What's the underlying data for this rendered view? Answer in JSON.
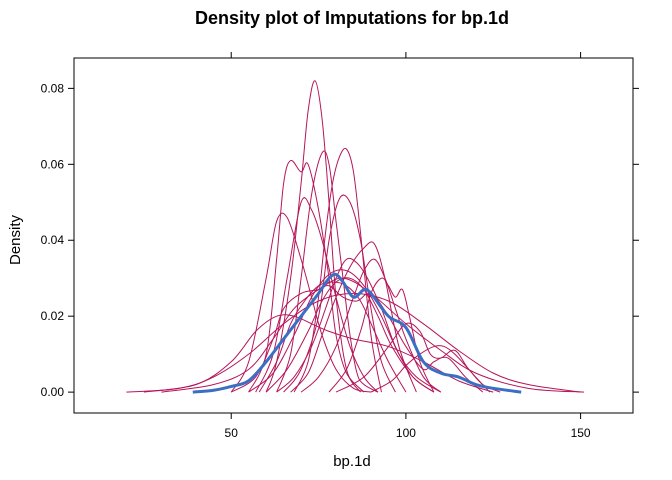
{
  "chart_data": {
    "type": "line",
    "title": "Density plot of Imputations for bp.1d",
    "xlabel": "bp.1d",
    "ylabel": "Density",
    "xlim": [
      5,
      165
    ],
    "ylim": [
      -0.0055,
      0.088
    ],
    "xticks": [
      50,
      100,
      150
    ],
    "yticks": [
      0.0,
      0.02,
      0.04,
      0.06,
      0.08
    ],
    "ytick_labels": [
      "0.00",
      "0.02",
      "0.04",
      "0.06",
      "0.08"
    ],
    "grid": false,
    "legend": "none",
    "colors": {
      "observed": "#3b6fc4",
      "imputed": "#b5165a"
    },
    "observed": {
      "x": [
        39,
        45,
        50,
        55,
        60,
        65,
        70,
        75,
        78,
        80,
        82,
        85,
        88,
        90,
        95,
        100,
        105,
        110,
        115,
        120,
        125,
        133
      ],
      "y": [
        0.0,
        0.0005,
        0.0015,
        0.003,
        0.008,
        0.014,
        0.02,
        0.026,
        0.03,
        0.031,
        0.029,
        0.025,
        0.027,
        0.026,
        0.02,
        0.017,
        0.008,
        0.005,
        0.004,
        0.002,
        0.001,
        0.0
      ]
    },
    "imputations": [
      {
        "x": [
          60,
          63,
          67,
          70,
          72,
          74,
          76,
          78,
          80,
          83,
          87
        ],
        "y": [
          0.0,
          0.008,
          0.03,
          0.055,
          0.074,
          0.082,
          0.072,
          0.05,
          0.025,
          0.006,
          0.0
        ]
      },
      {
        "x": [
          55,
          60,
          63,
          65,
          67,
          70,
          72,
          75,
          78,
          80,
          83,
          88
        ],
        "y": [
          0.0,
          0.01,
          0.035,
          0.055,
          0.061,
          0.058,
          0.06,
          0.048,
          0.03,
          0.015,
          0.005,
          0.0
        ]
      },
      {
        "x": [
          63,
          67,
          70,
          73,
          76,
          78,
          80,
          82,
          84,
          86,
          88,
          92
        ],
        "y": [
          0.0,
          0.01,
          0.03,
          0.052,
          0.063,
          0.06,
          0.045,
          0.03,
          0.015,
          0.005,
          0.002,
          0.0
        ]
      },
      {
        "x": [
          68,
          72,
          75,
          77,
          79,
          81,
          83,
          85,
          87,
          90,
          93
        ],
        "y": [
          0.0,
          0.008,
          0.025,
          0.042,
          0.055,
          0.062,
          0.064,
          0.058,
          0.042,
          0.015,
          0.0
        ]
      },
      {
        "x": [
          50,
          55,
          60,
          63,
          66,
          70,
          73,
          76,
          80,
          85,
          90
        ],
        "y": [
          0.0,
          0.008,
          0.03,
          0.045,
          0.046,
          0.035,
          0.025,
          0.015,
          0.006,
          0.001,
          0.0
        ]
      },
      {
        "x": [
          57,
          62,
          66,
          70,
          73,
          76,
          80,
          84,
          88,
          92
        ],
        "y": [
          0.0,
          0.01,
          0.03,
          0.05,
          0.048,
          0.04,
          0.025,
          0.012,
          0.004,
          0.0
        ]
      },
      {
        "x": [
          65,
          70,
          75,
          78,
          81,
          84,
          87,
          90,
          93,
          97
        ],
        "y": [
          0.0,
          0.006,
          0.02,
          0.04,
          0.051,
          0.05,
          0.04,
          0.022,
          0.008,
          0.0
        ]
      },
      {
        "x": [
          67,
          72,
          76,
          80,
          84,
          88,
          91,
          94,
          98,
          103
        ],
        "y": [
          0.0,
          0.005,
          0.015,
          0.025,
          0.033,
          0.038,
          0.039,
          0.03,
          0.012,
          0.0
        ]
      },
      {
        "x": [
          25,
          40,
          50,
          57,
          63,
          68,
          73,
          78,
          85,
          95,
          105,
          115,
          125
        ],
        "y": [
          0.0,
          0.002,
          0.008,
          0.016,
          0.02,
          0.02,
          0.018,
          0.016,
          0.014,
          0.012,
          0.008,
          0.003,
          0.0
        ]
      },
      {
        "x": [
          20,
          35,
          45,
          55,
          65,
          75,
          85,
          95,
          105,
          115,
          125,
          135,
          150
        ],
        "y": [
          0.0,
          0.001,
          0.004,
          0.01,
          0.018,
          0.024,
          0.026,
          0.024,
          0.018,
          0.011,
          0.005,
          0.002,
          0.0
        ]
      },
      {
        "x": [
          30,
          45,
          55,
          62,
          68,
          75,
          82,
          90,
          100,
          110,
          120,
          135,
          151
        ],
        "y": [
          0.0,
          0.002,
          0.006,
          0.014,
          0.022,
          0.027,
          0.03,
          0.026,
          0.018,
          0.011,
          0.005,
          0.001,
          0.0
        ]
      },
      {
        "x": [
          50,
          57,
          62,
          65,
          70,
          75,
          78,
          82,
          86,
          90,
          95,
          100,
          105,
          108,
          112,
          117,
          122
        ],
        "y": [
          0.0,
          0.004,
          0.014,
          0.022,
          0.026,
          0.027,
          0.028,
          0.025,
          0.024,
          0.026,
          0.02,
          0.012,
          0.006,
          0.008,
          0.009,
          0.004,
          0.0
        ]
      },
      {
        "x": [
          55,
          62,
          68,
          73,
          78,
          83,
          88,
          93,
          98,
          103,
          110
        ],
        "y": [
          0.0,
          0.005,
          0.015,
          0.025,
          0.031,
          0.032,
          0.028,
          0.02,
          0.01,
          0.004,
          0.0
        ]
      },
      {
        "x": [
          63,
          68,
          73,
          77,
          80,
          83,
          86,
          89,
          93,
          97,
          102,
          108
        ],
        "y": [
          0.0,
          0.004,
          0.012,
          0.022,
          0.03,
          0.035,
          0.034,
          0.03,
          0.022,
          0.012,
          0.004,
          0.0
        ]
      },
      {
        "x": [
          70,
          75,
          80,
          85,
          88,
          91,
          94,
          97,
          100,
          105,
          110
        ],
        "y": [
          0.0,
          0.004,
          0.012,
          0.025,
          0.032,
          0.035,
          0.03,
          0.022,
          0.014,
          0.004,
          0.0
        ]
      },
      {
        "x": [
          78,
          83,
          87,
          90,
          93,
          95,
          97,
          99,
          101,
          104,
          108
        ],
        "y": [
          0.0,
          0.006,
          0.016,
          0.026,
          0.03,
          0.028,
          0.025,
          0.027,
          0.02,
          0.008,
          0.0
        ]
      },
      {
        "x": [
          80,
          88,
          95,
          100,
          104,
          107,
          110,
          114,
          118,
          124
        ],
        "y": [
          0.0,
          0.004,
          0.012,
          0.018,
          0.016,
          0.01,
          0.009,
          0.011,
          0.006,
          0.0
        ]
      },
      {
        "x": [
          90,
          96,
          100,
          104,
          108,
          111,
          114,
          118,
          122,
          127
        ],
        "y": [
          0.0,
          0.003,
          0.007,
          0.01,
          0.012,
          0.012,
          0.01,
          0.006,
          0.002,
          0.0
        ]
      },
      {
        "x": [
          58,
          63,
          67,
          71,
          75,
          79,
          83,
          87,
          91,
          95,
          100
        ],
        "y": [
          0.0,
          0.008,
          0.018,
          0.024,
          0.028,
          0.029,
          0.028,
          0.024,
          0.016,
          0.008,
          0.0
        ]
      },
      {
        "x": [
          60,
          66,
          72,
          76,
          80,
          84,
          88,
          92,
          96,
          102,
          108
        ],
        "y": [
          0.0,
          0.006,
          0.016,
          0.024,
          0.029,
          0.03,
          0.027,
          0.02,
          0.012,
          0.004,
          0.0
        ]
      }
    ]
  }
}
